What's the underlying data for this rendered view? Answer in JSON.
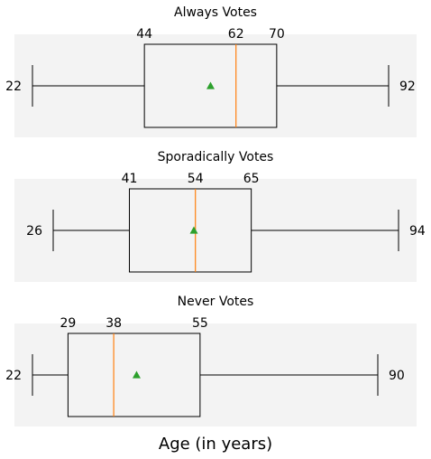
{
  "chart_data": {
    "type": "boxplot",
    "orientation": "horizontal",
    "xlabel": "Age (in years)",
    "panel_color": "#f3f3f3",
    "median_color": "#ff7f0e",
    "mean_color": "#2ca02c",
    "box_color": "#000000",
    "panels": [
      {
        "title": "Always Votes",
        "min": 22,
        "q1": 44,
        "median": 62,
        "q3": 70,
        "max": 92,
        "mean": 57
      },
      {
        "title": "Sporadically Votes",
        "min": 26,
        "q1": 41,
        "median": 54,
        "q3": 65,
        "max": 94,
        "mean": 53.7
      },
      {
        "title": "Never Votes",
        "min": 22,
        "q1": 29,
        "median": 38,
        "q3": 55,
        "max": 90,
        "mean": 42.5
      }
    ]
  }
}
